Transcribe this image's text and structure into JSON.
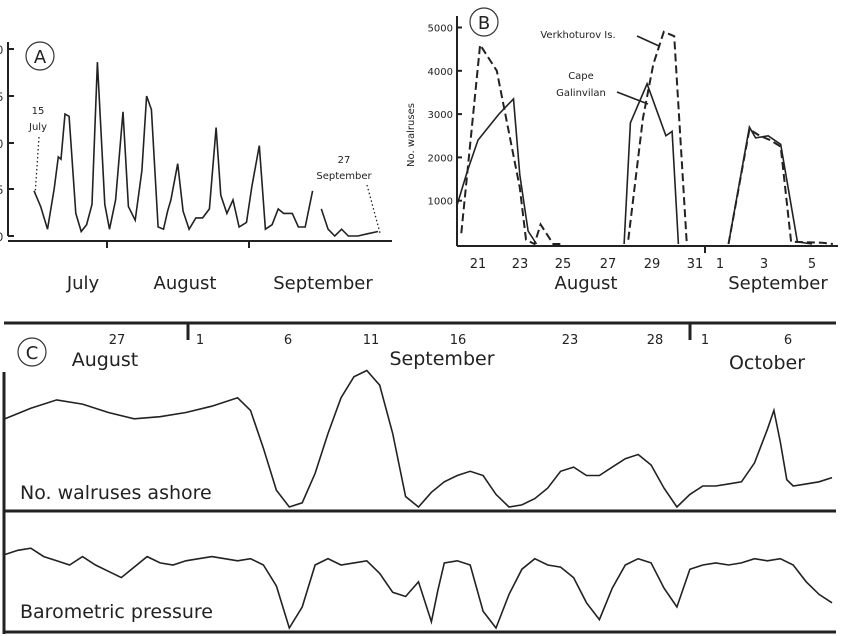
{
  "chart_data": [
    {
      "type": "line",
      "panel_letter": "A",
      "y_ticks": [
        "0",
        "5",
        "0",
        "5",
        "0"
      ],
      "month_labels": [
        "July",
        "August",
        "September"
      ],
      "annotations": [
        {
          "text": [
            "15",
            "July"
          ]
        },
        {
          "text": [
            "27",
            "September"
          ]
        }
      ],
      "series": [
        {
          "values": [
            [
              0.0,
              2.0
            ],
            [
              1.0,
              1.3
            ],
            [
              2.0,
              0.3
            ],
            [
              3.0,
              2.1
            ],
            [
              3.6,
              3.5
            ],
            [
              4.0,
              3.4
            ],
            [
              4.6,
              5.4
            ],
            [
              5.2,
              5.3
            ],
            [
              6.2,
              1.0
            ],
            [
              7.0,
              0.2
            ],
            [
              7.8,
              0.5
            ],
            [
              8.6,
              1.4
            ],
            [
              9.4,
              7.7
            ],
            [
              10.5,
              1.4
            ],
            [
              11.2,
              0.3
            ],
            [
              12.1,
              1.6
            ],
            [
              13.2,
              5.5
            ],
            [
              14.0,
              1.3
            ],
            [
              15.0,
              0.7
            ],
            [
              16.0,
              2.9
            ],
            [
              16.7,
              6.2
            ],
            [
              17.4,
              5.6
            ],
            [
              18.4,
              0.4
            ],
            [
              19.2,
              0.3
            ],
            [
              19.8,
              1.1
            ],
            [
              20.3,
              1.6
            ],
            [
              21.3,
              3.2
            ],
            [
              22.1,
              1.1
            ],
            [
              23.0,
              0.3
            ],
            [
              24.0,
              0.8
            ],
            [
              25.0,
              0.8
            ],
            [
              26.0,
              1.2
            ],
            [
              27.0,
              4.8
            ],
            [
              27.7,
              1.8
            ],
            [
              28.6,
              1.0
            ],
            [
              29.5,
              1.6
            ],
            [
              30.4,
              0.4
            ],
            [
              31.5,
              0.6
            ],
            [
              32.3,
              2.2
            ],
            [
              33.4,
              4.0
            ],
            [
              34.3,
              0.3
            ],
            [
              35.3,
              0.5
            ],
            [
              36.2,
              1.2
            ],
            [
              37.0,
              1.0
            ],
            [
              38.3,
              1.0
            ],
            [
              39.2,
              0.4
            ],
            [
              40.2,
              0.4
            ],
            [
              41.3,
              2.0
            ]
          ]
        },
        {
          "values": [
            [
              42.6,
              1.2
            ],
            [
              43.6,
              0.3
            ],
            [
              44.6,
              0.0
            ],
            [
              45.6,
              0.3
            ],
            [
              46.6,
              0.0
            ],
            [
              48.0,
              0.0
            ],
            [
              49.5,
              0.1
            ],
            [
              51.0,
              0.2
            ]
          ]
        }
      ],
      "xlim": [
        0,
        51
      ],
      "ylim": [
        0,
        8.5
      ]
    },
    {
      "type": "line",
      "panel_letter": "B",
      "ylabel": "No. walruses",
      "y_ticks": [
        1000,
        2000,
        3000,
        4000,
        5000
      ],
      "x_ticks": [
        "21",
        "23",
        "25",
        "27",
        "29",
        "31",
        "1",
        "3",
        "5"
      ],
      "month_labels": [
        "August",
        "September"
      ],
      "annotations": [
        {
          "text": [
            "Verkhoturov Is."
          ]
        },
        {
          "text": [
            "Cape",
            "Galinvilan"
          ]
        }
      ],
      "series": [
        {
          "style": "solid",
          "segments": [
            [
              [
                20.0,
                900
              ],
              [
                20.5,
                1700
              ],
              [
                21.0,
                2400
              ],
              [
                22.0,
                3000
              ],
              [
                22.7,
                3350
              ],
              [
                23.0,
                1600
              ],
              [
                23.4,
                300
              ],
              [
                23.8,
                0
              ]
            ],
            [
              [
                28.0,
                0
              ],
              [
                28.3,
                2800
              ],
              [
                29.1,
                3700
              ],
              [
                30.0,
                2500
              ],
              [
                30.3,
                2600
              ],
              [
                30.6,
                0
              ]
            ],
            [
              [
                33.0,
                0
              ],
              [
                34.0,
                2700
              ],
              [
                34.3,
                2450
              ],
              [
                34.9,
                2500
              ],
              [
                35.5,
                2300
              ],
              [
                36.3,
                50
              ],
              [
                37.0,
                0
              ]
            ]
          ]
        },
        {
          "style": "dashed",
          "segments": [
            [
              [
                20.2,
                250
              ],
              [
                21.1,
                4600
              ],
              [
                21.9,
                4000
              ],
              [
                23.0,
                1300
              ],
              [
                23.3,
                100
              ],
              [
                23.7,
                0
              ],
              [
                24.0,
                450
              ],
              [
                24.6,
                0
              ],
              [
                25.0,
                0
              ]
            ],
            [
              [
                28.2,
                100
              ],
              [
                28.9,
                2900
              ],
              [
                29.4,
                4150
              ],
              [
                29.9,
                4900
              ],
              [
                30.4,
                4800
              ],
              [
                31.0,
                0
              ]
            ],
            [
              [
                33.0,
                0
              ],
              [
                34.0,
                2650
              ],
              [
                34.5,
                2500
              ],
              [
                35.0,
                2400
              ],
              [
                35.5,
                2250
              ],
              [
                36.0,
                50
              ],
              [
                37.5,
                30
              ],
              [
                38.0,
                0
              ]
            ]
          ]
        }
      ],
      "xlim": [
        20,
        38
      ],
      "ylim": [
        0,
        5200
      ]
    },
    {
      "type": "line",
      "panel_letter": "C",
      "date_ticks": [
        "27",
        "1",
        "6",
        "11",
        "16",
        "23",
        "28",
        "1",
        "6"
      ],
      "month_labels": [
        "August",
        "September",
        "October"
      ],
      "series": [
        {
          "name": "No. walruses ashore",
          "values": [
            [
              0.0,
              4.2
            ],
            [
              2.0,
              4.7
            ],
            [
              4.0,
              5.1
            ],
            [
              6.0,
              4.9
            ],
            [
              8.0,
              4.5
            ],
            [
              10.0,
              4.2
            ],
            [
              12.0,
              4.3
            ],
            [
              14.0,
              4.5
            ],
            [
              16.0,
              4.8
            ],
            [
              18.0,
              5.2
            ],
            [
              19.0,
              4.6
            ],
            [
              20.0,
              2.8
            ],
            [
              21.0,
              0.8
            ],
            [
              22.0,
              0.0
            ],
            [
              23.0,
              0.2
            ],
            [
              24.0,
              1.6
            ],
            [
              25.0,
              3.5
            ],
            [
              26.0,
              5.2
            ],
            [
              27.0,
              6.2
            ],
            [
              28.0,
              6.5
            ],
            [
              29.0,
              5.8
            ],
            [
              30.0,
              3.5
            ],
            [
              31.0,
              0.5
            ],
            [
              32.0,
              0.0
            ],
            [
              33.0,
              0.7
            ],
            [
              34.0,
              1.2
            ],
            [
              35.0,
              1.5
            ],
            [
              36.0,
              1.7
            ],
            [
              37.0,
              1.5
            ],
            [
              38.0,
              0.6
            ],
            [
              39.0,
              0.0
            ],
            [
              40.0,
              0.1
            ],
            [
              41.0,
              0.4
            ],
            [
              42.0,
              0.9
            ],
            [
              43.0,
              1.7
            ],
            [
              44.0,
              1.9
            ],
            [
              45.0,
              1.5
            ],
            [
              46.0,
              1.5
            ],
            [
              47.0,
              1.9
            ],
            [
              48.0,
              2.3
            ],
            [
              49.0,
              2.5
            ],
            [
              50.0,
              2.0
            ],
            [
              51.0,
              0.9
            ],
            [
              52.0,
              0.0
            ],
            [
              53.0,
              0.6
            ],
            [
              54.0,
              1.0
            ],
            [
              55.0,
              1.0
            ],
            [
              56.0,
              1.1
            ],
            [
              57.0,
              1.2
            ],
            [
              58.0,
              2.1
            ],
            [
              59.0,
              3.7
            ],
            [
              59.5,
              4.6
            ],
            [
              60.0,
              3.1
            ],
            [
              60.5,
              1.3
            ],
            [
              61.0,
              1.0
            ],
            [
              62.0,
              1.1
            ],
            [
              63.0,
              1.2
            ],
            [
              64.0,
              1.4
            ]
          ]
        },
        {
          "name": "Barometric pressure",
          "values": [
            [
              0.0,
              3.5
            ],
            [
              1.0,
              3.7
            ],
            [
              2.0,
              3.8
            ],
            [
              3.0,
              3.4
            ],
            [
              4.0,
              3.2
            ],
            [
              5.0,
              3.0
            ],
            [
              6.0,
              3.4
            ],
            [
              7.0,
              3.0
            ],
            [
              8.0,
              2.7
            ],
            [
              9.0,
              2.4
            ],
            [
              10.0,
              2.9
            ],
            [
              11.0,
              3.4
            ],
            [
              12.0,
              3.1
            ],
            [
              13.0,
              3.0
            ],
            [
              14.0,
              3.2
            ],
            [
              15.0,
              3.3
            ],
            [
              16.0,
              3.4
            ],
            [
              17.0,
              3.3
            ],
            [
              18.0,
              3.2
            ],
            [
              19.0,
              3.3
            ],
            [
              20.0,
              3.0
            ],
            [
              21.0,
              2.0
            ],
            [
              22.0,
              0.0
            ],
            [
              23.0,
              1.0
            ],
            [
              24.0,
              3.0
            ],
            [
              25.0,
              3.3
            ],
            [
              26.0,
              3.0
            ],
            [
              27.0,
              3.1
            ],
            [
              28.0,
              3.2
            ],
            [
              29.0,
              2.6
            ],
            [
              30.0,
              1.7
            ],
            [
              31.0,
              1.5
            ],
            [
              32.0,
              2.2
            ],
            [
              33.0,
              0.3
            ],
            [
              33.5,
              1.8
            ],
            [
              34.0,
              3.1
            ],
            [
              35.0,
              3.2
            ],
            [
              36.0,
              3.0
            ],
            [
              37.0,
              0.8
            ],
            [
              38.0,
              0.0
            ],
            [
              39.0,
              1.6
            ],
            [
              40.0,
              2.8
            ],
            [
              41.0,
              3.3
            ],
            [
              42.0,
              3.0
            ],
            [
              43.0,
              2.9
            ],
            [
              44.0,
              2.4
            ],
            [
              45.0,
              1.2
            ],
            [
              46.0,
              0.4
            ],
            [
              47.0,
              1.9
            ],
            [
              48.0,
              3.0
            ],
            [
              49.0,
              3.3
            ],
            [
              50.0,
              3.1
            ],
            [
              51.0,
              1.9
            ],
            [
              52.0,
              1.0
            ],
            [
              53.0,
              2.8
            ],
            [
              54.0,
              3.0
            ],
            [
              55.0,
              3.1
            ],
            [
              56.0,
              3.0
            ],
            [
              57.0,
              3.1
            ],
            [
              58.0,
              3.3
            ],
            [
              59.0,
              3.2
            ],
            [
              60.0,
              3.3
            ],
            [
              61.0,
              3.0
            ],
            [
              62.0,
              2.2
            ],
            [
              63.0,
              1.6
            ],
            [
              64.0,
              1.2
            ]
          ]
        }
      ],
      "xlim": [
        0,
        64
      ]
    }
  ]
}
